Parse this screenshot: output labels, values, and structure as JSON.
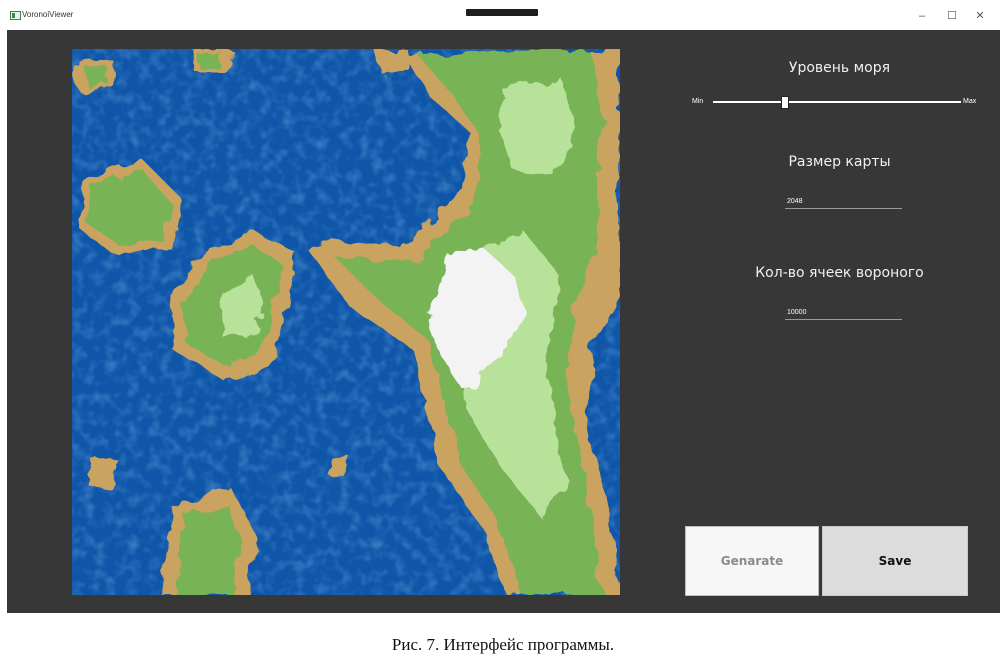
{
  "window": {
    "title": "VoronoiViewer",
    "controls": {
      "minimize": "–",
      "maximize": "☐",
      "close": "✕"
    }
  },
  "panel": {
    "sea_level": {
      "label": "Уровень моря",
      "min_label": "Min",
      "max_label": "Max",
      "value_fraction": 0.29
    },
    "map_size": {
      "label": "Размер карты",
      "value": "2048"
    },
    "voronoi_cells": {
      "label": "Кол-во ячеек вороного",
      "value": "10000"
    },
    "buttons": {
      "generate": "Genarate",
      "save": "Save"
    }
  },
  "caption": "Рис. 7. Интерфейс программы.",
  "colors": {
    "background": "#373737",
    "deep_water": "#0f55a8",
    "shallow_water": "#2f7fd2",
    "sand": "#caa361",
    "grass": "#78b356",
    "light_grass": "#b8e29a",
    "snow": "#f3f3f3"
  }
}
